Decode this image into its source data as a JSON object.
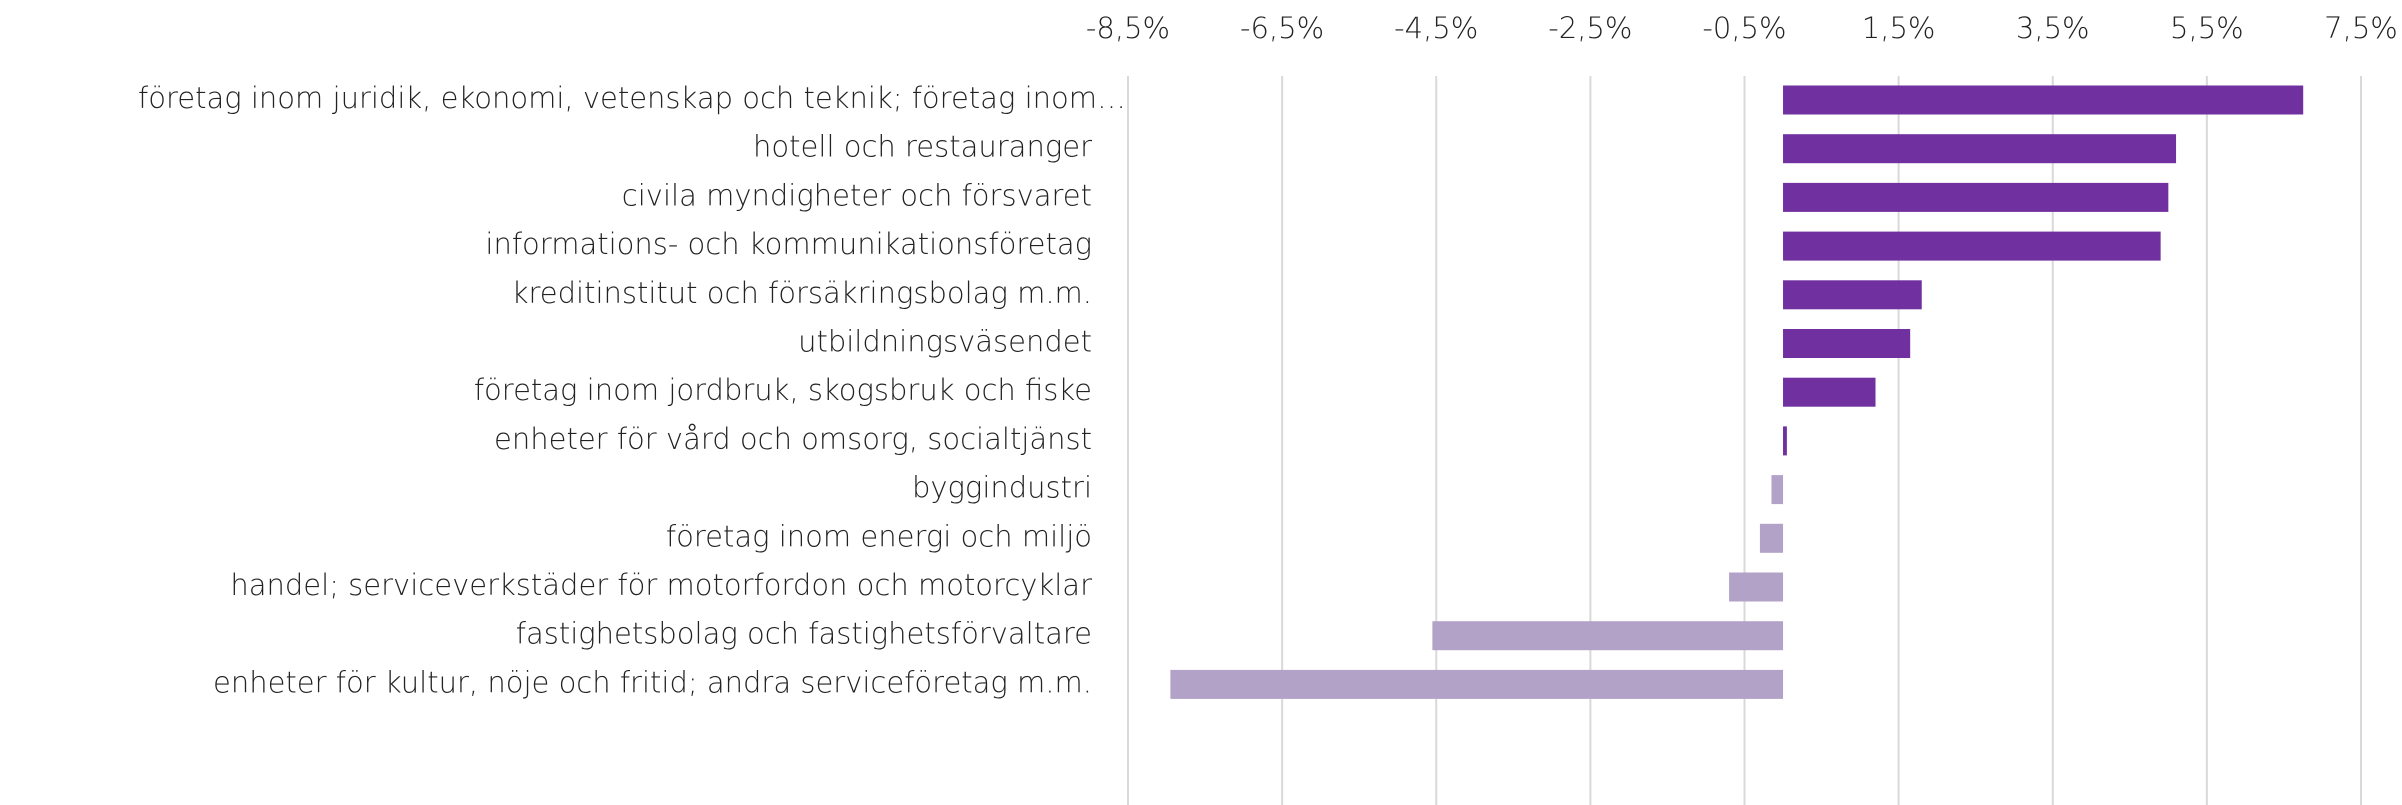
{
  "chart_data": {
    "type": "barh",
    "categories": [
      "företag inom juridik, ekonomi, vetenskap och teknik; företag inom…",
      "hotell och restauranger",
      "civila myndigheter och försvaret",
      "informations- och kommunikationsföretag",
      "kreditinstitut och försäkringsbolag m.m.",
      "utbildningsväsendet",
      "företag inom jordbruk, skogsbruk och fiske",
      "enheter för vård och omsorg, socialtjänst",
      "byggindustri",
      "företag inom energi och miljö",
      "handel; serviceverkstäder för motorfordon och motorcyklar",
      "fastighetsbolag och fastighetsförvaltare",
      "enheter för kultur, nöje och fritid; andra serviceföretag m.m."
    ],
    "values": [
      6.75,
      5.1,
      5.0,
      4.9,
      1.8,
      1.65,
      1.2,
      0.05,
      -0.15,
      -0.3,
      -0.7,
      -4.55,
      -7.95
    ],
    "positive_color": "#7030a0",
    "negative_color": "#b3a2c7",
    "xlim": [
      -8.5,
      7.5
    ],
    "xticks": [
      {
        "value": -8.5,
        "label": "-8,5%"
      },
      {
        "value": -6.5,
        "label": "-6,5%"
      },
      {
        "value": -4.5,
        "label": "-4,5%"
      },
      {
        "value": -2.5,
        "label": "-2,5%"
      },
      {
        "value": -0.5,
        "label": "-0,5%"
      },
      {
        "value": 1.5,
        "label": "1,5%"
      },
      {
        "value": 3.5,
        "label": "3,5%"
      },
      {
        "value": 5.5,
        "label": "5,5%"
      },
      {
        "value": 7.5,
        "label": "7,5%"
      }
    ],
    "grid": true
  }
}
